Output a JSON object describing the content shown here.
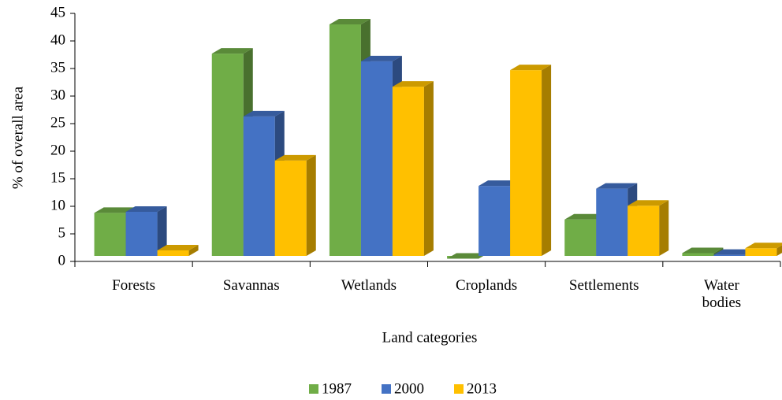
{
  "chart_data": {
    "type": "bar3d",
    "xlabel": "Land categories",
    "ylabel": "% of overall area",
    "categories": [
      "Forests",
      "Savannas",
      "Wetlands",
      "Croplands",
      "Settlements",
      "Water bodies"
    ],
    "series": [
      {
        "name": "1987",
        "color": "#70ad47",
        "values": [
          9.8,
          38.7,
          44,
          1.5,
          8.6,
          2.5
        ]
      },
      {
        "name": "2000",
        "color": "#4472c4",
        "values": [
          10,
          27.3,
          37.3,
          14.7,
          14.2,
          2.2
        ]
      },
      {
        "name": "2013",
        "color": "#ffc000",
        "values": [
          3,
          19.3,
          32.7,
          35.7,
          11.1,
          3.4
        ]
      }
    ],
    "ylim": [
      0,
      45
    ],
    "yticks": [
      0,
      5,
      10,
      15,
      20,
      25,
      30,
      35,
      40,
      45
    ],
    "legend": "bottom"
  }
}
